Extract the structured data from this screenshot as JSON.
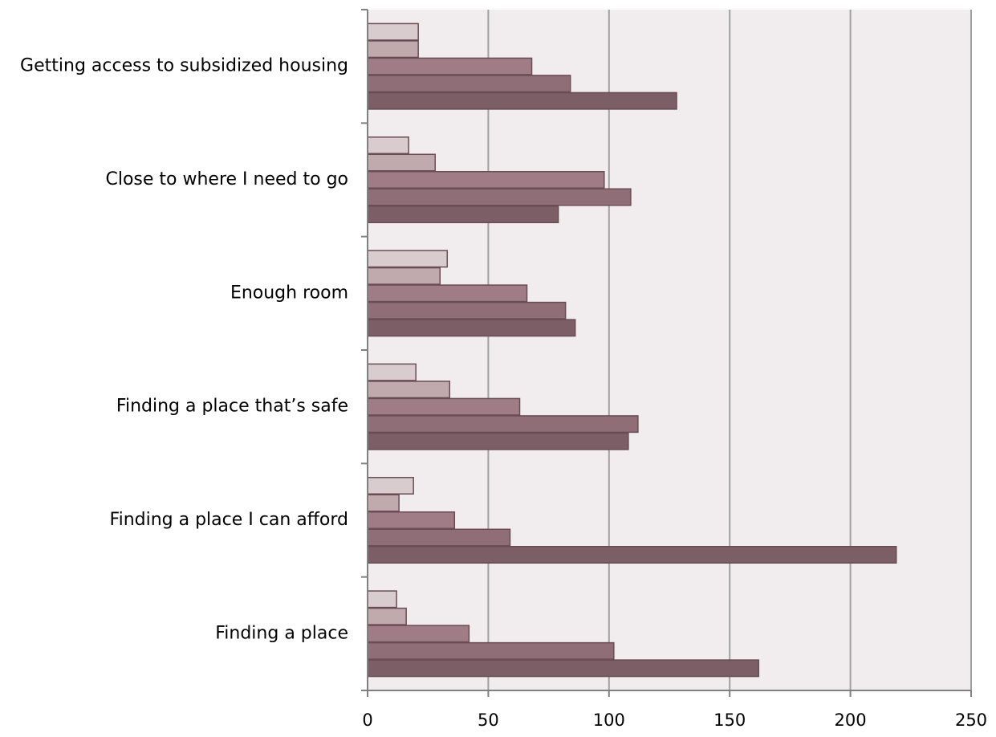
{
  "chart_data": {
    "type": "bar",
    "orientation": "horizontal",
    "title": "",
    "xlabel": "",
    "ylabel": "",
    "xlim": [
      0,
      250
    ],
    "x_ticks": [
      0,
      50,
      100,
      150,
      200,
      250
    ],
    "x_tick_labels": [
      "0",
      "50",
      "100",
      "150",
      "200",
      "250"
    ],
    "grid": "vertical",
    "legend": "none",
    "categories": [
      "Getting access to subsidized housing",
      "Close to where I need to go",
      "Enough room",
      "Finding a place that’s safe",
      "Finding a place I can afford",
      "Finding a place"
    ],
    "series": [
      {
        "color": "#d9ccce",
        "values": [
          21,
          17,
          33,
          20,
          19,
          12
        ]
      },
      {
        "color": "#c0aaae",
        "values": [
          21,
          28,
          30,
          34,
          13,
          16
        ]
      },
      {
        "color": "#a07d86",
        "values": [
          68,
          98,
          66,
          63,
          36,
          42
        ]
      },
      {
        "color": "#8f6e77",
        "values": [
          84,
          109,
          82,
          112,
          59,
          102
        ]
      },
      {
        "color": "#7b5e66",
        "values": [
          128,
          79,
          86,
          108,
          219,
          162
        ]
      }
    ],
    "colors": {
      "plot_background": "#f1edee",
      "grid": "#a0a0a0",
      "axis": "#808080",
      "bar_stroke": "#6a4c54"
    }
  }
}
